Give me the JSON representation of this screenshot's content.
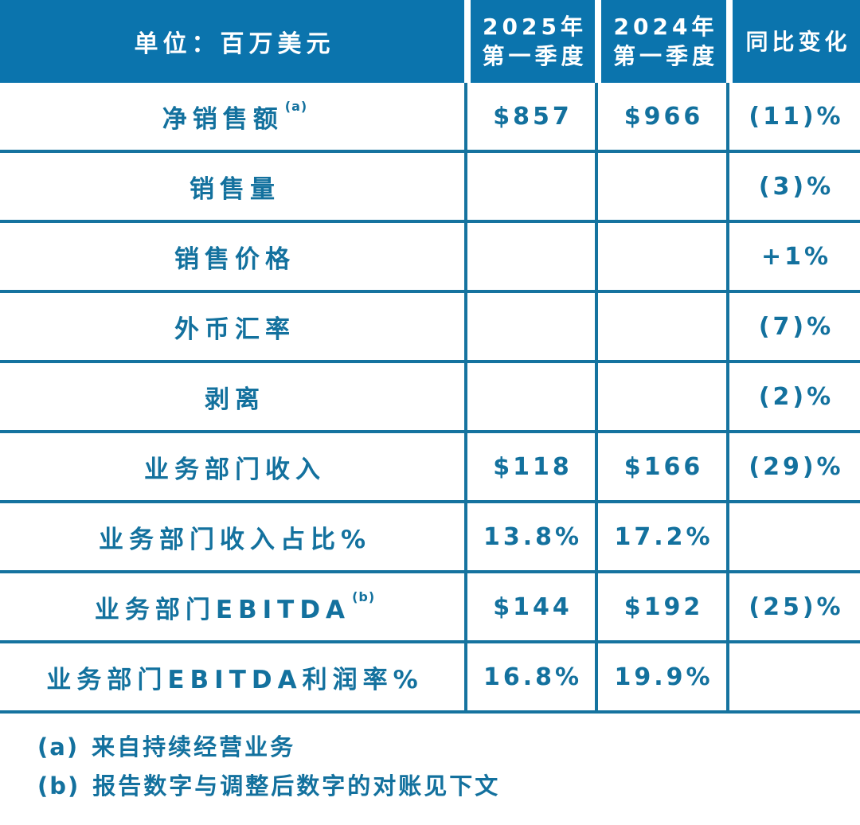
{
  "colors": {
    "header_bg": "#0b74ad",
    "header_text": "#ffffff",
    "accent_text": "#13719e",
    "border": "#15739f"
  },
  "table": {
    "unit_header": "单位：百万美元",
    "columns": [
      {
        "line1": "2025年",
        "line2": "第一季度"
      },
      {
        "line1": "2024年",
        "line2": "第一季度"
      },
      {
        "line1": "同比变化"
      }
    ],
    "rows": [
      {
        "label": "净销售额",
        "sup": "(a)",
        "q2025": "$857",
        "q2024": "$966",
        "yoy": "(11)%"
      },
      {
        "label": "销售量",
        "sup": "",
        "q2025": "",
        "q2024": "",
        "yoy": "(3)%"
      },
      {
        "label": "销售价格",
        "sup": "",
        "q2025": "",
        "q2024": "",
        "yoy": "+1%"
      },
      {
        "label": "外币汇率",
        "sup": "",
        "q2025": "",
        "q2024": "",
        "yoy": "(7)%"
      },
      {
        "label": "剥离",
        "sup": "",
        "q2025": "",
        "q2024": "",
        "yoy": "(2)%"
      },
      {
        "label": "业务部门收入",
        "sup": "",
        "q2025": "$118",
        "q2024": "$166",
        "yoy": "(29)%"
      },
      {
        "label": "业务部门收入占比%",
        "sup": "",
        "q2025": "13.8%",
        "q2024": "17.2%",
        "yoy": ""
      },
      {
        "label": "业务部门EBITDA",
        "sup": "(b)",
        "q2025": "$144",
        "q2024": "$192",
        "yoy": "(25)%"
      },
      {
        "label": "业务部门EBITDA利润率%",
        "sup": "",
        "q2025": "16.8%",
        "q2024": "19.9%",
        "yoy": ""
      }
    ]
  },
  "footnotes": [
    {
      "marker": "(a)",
      "text": "来自持续经营业务"
    },
    {
      "marker": "(b)",
      "text": "报告数字与调整后数字的对账见下文"
    }
  ],
  "chart_data": {
    "type": "table",
    "title": "单位：百万美元",
    "columns": [
      "单位：百万美元",
      "2025年第一季度",
      "2024年第一季度",
      "同比变化"
    ],
    "rows": [
      [
        "净销售额 (a)",
        "$857",
        "$966",
        "(11)%"
      ],
      [
        "销售量",
        "",
        "",
        "(3)%"
      ],
      [
        "销售价格",
        "",
        "",
        "+1%"
      ],
      [
        "外币汇率",
        "",
        "",
        "(7)%"
      ],
      [
        "剥离",
        "",
        "",
        "(2)%"
      ],
      [
        "业务部门收入",
        "$118",
        "$166",
        "(29)%"
      ],
      [
        "业务部门收入占比%",
        "13.8%",
        "17.2%",
        ""
      ],
      [
        "业务部门EBITDA (b)",
        "$144",
        "$192",
        "(25)%"
      ],
      [
        "业务部门EBITDA利润率%",
        "16.8%",
        "19.9%",
        ""
      ]
    ],
    "footnotes": [
      "(a) 来自持续经营业务",
      "(b) 报告数字与调整后数字的对账见下文"
    ]
  }
}
